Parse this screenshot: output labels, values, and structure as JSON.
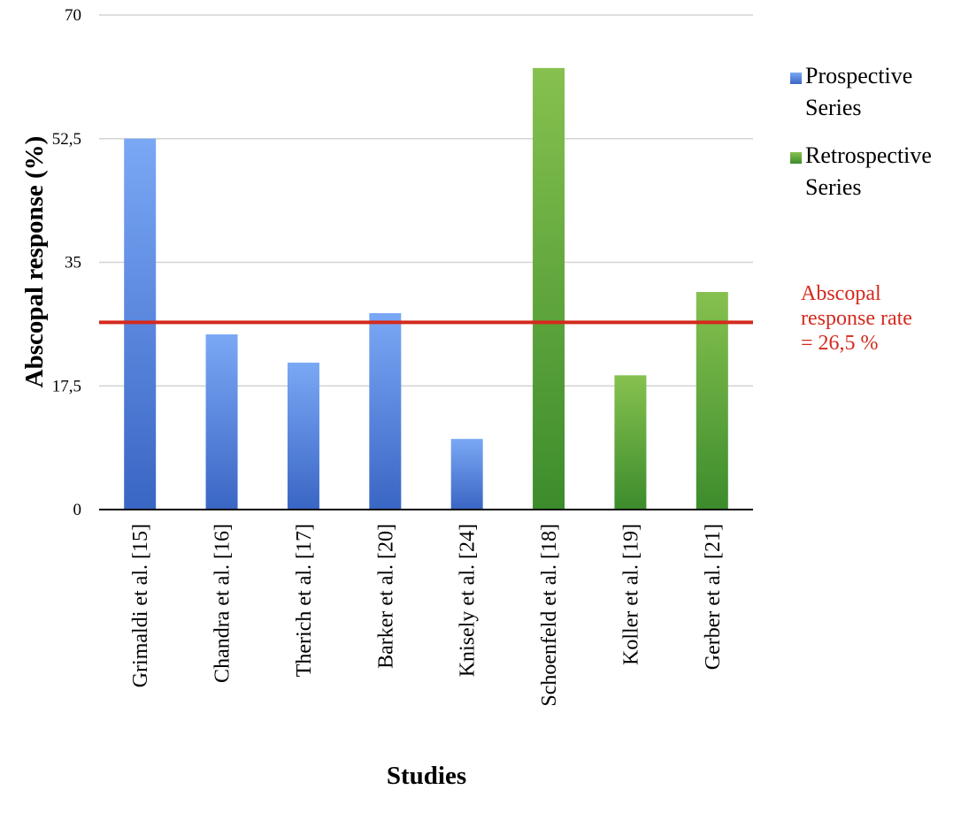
{
  "chart_data": {
    "type": "bar",
    "title": "",
    "xlabel": "Studies",
    "ylabel": "Abscopal response (%)",
    "ylim": [
      0,
      70
    ],
    "yticks": [
      "0",
      "17,5",
      "35",
      "52,5",
      "70"
    ],
    "grid": true,
    "legend_position": "right",
    "categories": [
      "Grimaldi et al.  [15]",
      "Chandra et al.  [16]",
      "Therich et al.  [17]",
      "Barker et al. [20]",
      "Knisely et al. [24]",
      "Schoenfeld et al. [18]",
      "Koller et al. [19]",
      "Gerber et al. [21]"
    ],
    "series": [
      {
        "name": "Prospective Series",
        "color": "#4a7fd9",
        "values": [
          52.5,
          24.8,
          20.8,
          27.8,
          10,
          null,
          null,
          null
        ]
      },
      {
        "name": "Retrospective Series",
        "color": "#4e9d3a",
        "values": [
          null,
          null,
          null,
          null,
          null,
          62.5,
          19,
          30.8
        ]
      }
    ],
    "reference_line": {
      "value": 26.5,
      "color": "#d42a1e",
      "label_lines": [
        "Abscopal",
        "response rate",
        "= 26,5 %"
      ]
    }
  }
}
